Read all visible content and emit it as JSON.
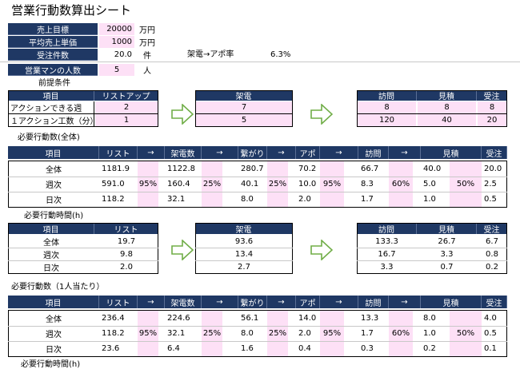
{
  "title": "営業行動数算出シート",
  "summary": {
    "rows": [
      {
        "label": "売上目標",
        "value": "20000",
        "unit": "万円"
      },
      {
        "label": "平均売上単価",
        "value": "1000",
        "unit": "万円"
      },
      {
        "label": "受注件数",
        "value": "20.0",
        "unit": "件"
      },
      {
        "label": "営業マンの人数",
        "value": "5",
        "unit": "人"
      }
    ],
    "rate_label": "架電→アポ率",
    "rate_value": "6.3%"
  },
  "premise": {
    "title": "前提条件",
    "item_header": "項目",
    "row_labels": [
      "アクションできる週",
      "１アクション工数（分）"
    ],
    "list_header": "リストアップ",
    "list_values": [
      "2",
      "1"
    ],
    "call_header": "架電",
    "call_values": [
      "7",
      "5"
    ],
    "visit_headers": [
      "訪問",
      "見積",
      "受注"
    ],
    "visit_values": [
      [
        "8",
        "8",
        "8"
      ],
      [
        "120",
        "40",
        "20"
      ]
    ]
  },
  "total": {
    "title": "必要行動数(全体)",
    "headers": [
      "項目",
      "リスト",
      "→",
      "架電数",
      "→",
      "繋がり",
      "→",
      "アポ",
      "→",
      "訪問",
      "→",
      "見積",
      "受注"
    ],
    "rows": [
      {
        "label": "全体",
        "values": [
          "1181.9",
          "1122.8",
          "280.7",
          "70.2",
          "66.7",
          "40.0",
          "20.0"
        ]
      },
      {
        "label": "週次",
        "values": [
          "591.0",
          "160.4",
          "40.1",
          "10.0",
          "8.3",
          "5.0",
          "2.5"
        ]
      },
      {
        "label": "日次",
        "values": [
          "118.2",
          "32.1",
          "8.0",
          "2.0",
          "1.7",
          "1.0",
          "0.5"
        ]
      }
    ],
    "rates": [
      "95%",
      "25%",
      "25%",
      "95%",
      "60%",
      "50%"
    ]
  },
  "time": {
    "title": "必要行動時間(h)",
    "item_header": "項目",
    "list_header": "リスト",
    "call_header": "架電",
    "visit_headers": [
      "訪問",
      "見積",
      "受注"
    ],
    "row_labels": [
      "全体",
      "週次",
      "日次"
    ],
    "list_values": [
      "19.7",
      "9.8",
      "2.0"
    ],
    "call_values": [
      "93.6",
      "13.4",
      "2.7"
    ],
    "visit_values": [
      [
        "133.3",
        "26.7",
        "6.7"
      ],
      [
        "16.7",
        "3.3",
        "0.8"
      ],
      [
        "3.3",
        "0.7",
        "0.2"
      ]
    ]
  },
  "per_person": {
    "title": "必要行動数（1人当たり）",
    "headers": [
      "項目",
      "リスト",
      "→",
      "架電数",
      "→",
      "繋がり",
      "→",
      "アポ",
      "→",
      "訪問",
      "→",
      "見積",
      "受注"
    ],
    "rows": [
      {
        "label": "全体",
        "values": [
          "236.4",
          "224.6",
          "56.1",
          "14.0",
          "13.3",
          "8.0",
          "4.0"
        ]
      },
      {
        "label": "週次",
        "values": [
          "118.2",
          "32.1",
          "8.0",
          "2.0",
          "1.7",
          "1.0",
          "0.5"
        ]
      },
      {
        "label": "日次",
        "values": [
          "23.6",
          "6.4",
          "1.6",
          "0.4",
          "0.3",
          "0.2",
          "0.1"
        ]
      }
    ],
    "rates": [
      "95%",
      "25%",
      "25%",
      "95%",
      "60%",
      "50%"
    ]
  },
  "cutoff_title": "必要行動時間(h)"
}
